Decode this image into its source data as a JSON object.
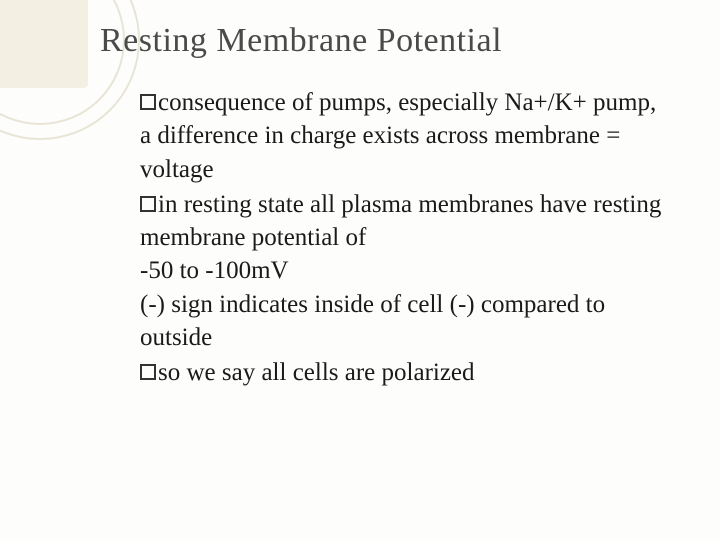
{
  "slide": {
    "title": "Resting Membrane Potential",
    "title_fontsize": 34,
    "title_color": "#4a4a4a",
    "body_fontsize": 25,
    "body_color": "#1a1a1a",
    "background_color": "#fdfdfb",
    "decoration": {
      "ring_color": "#e8e4d6",
      "square_color": "#f3efe2"
    },
    "bullets": [
      {
        "text": "consequence of pumps, especially Na+/K+ pump, a difference in charge exists across membrane = voltage"
      },
      {
        "text": "in resting state all plasma membranes have resting membrane potential of",
        "continuation": [
          "-50 to -100mV",
          "(-) sign indicates inside of cell (-) compared to outside"
        ]
      },
      {
        "text": "so we say all cells are polarized"
      }
    ]
  }
}
